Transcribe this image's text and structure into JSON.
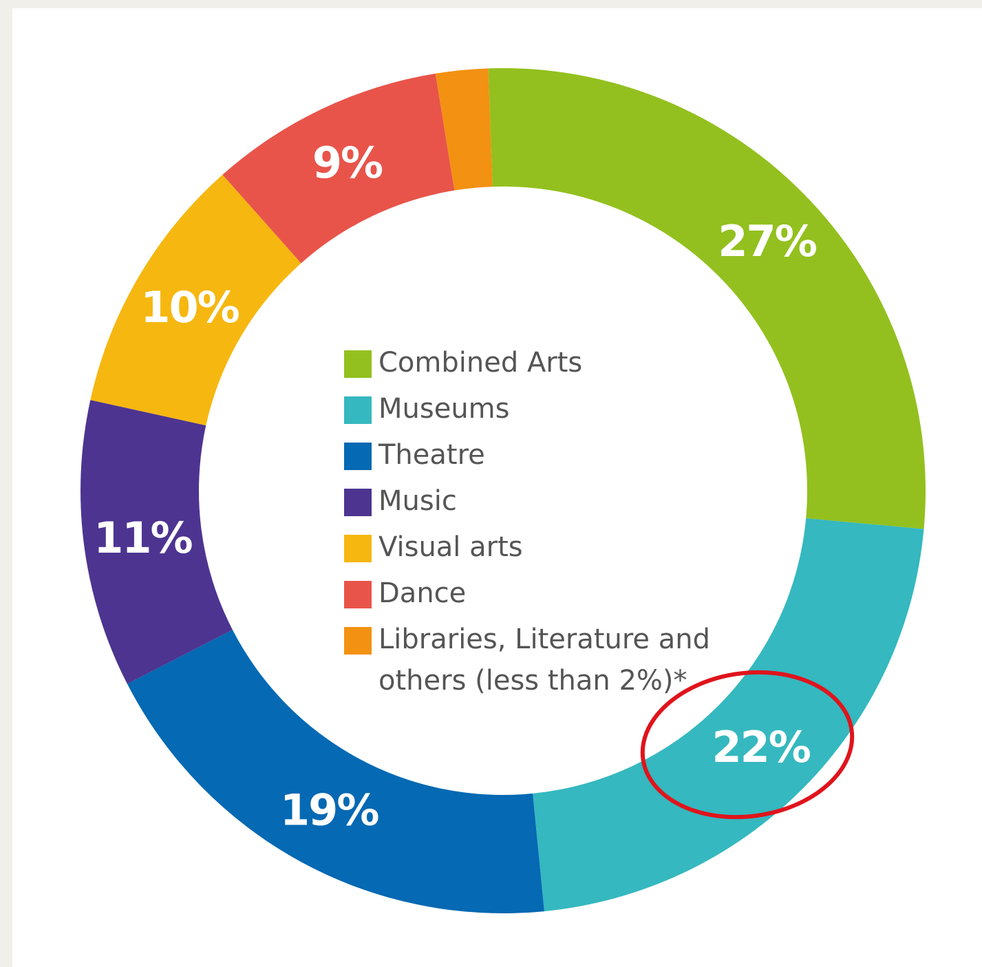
{
  "chart_data": {
    "type": "pie",
    "style": "donut",
    "slices": [
      {
        "label": "Combined Arts",
        "value": 27,
        "display": "27%",
        "color": "#93c01f"
      },
      {
        "label": "Museums",
        "value": 22,
        "display": "22%",
        "color": "#35b8bf"
      },
      {
        "label": "Theatre",
        "value": 19,
        "display": "19%",
        "color": "#0569b3"
      },
      {
        "label": "Music",
        "value": 11,
        "display": "11%",
        "color": "#4d3491"
      },
      {
        "label": "Visual arts",
        "value": 10,
        "display": "10%",
        "color": "#f6b710"
      },
      {
        "label": "Dance",
        "value": 9,
        "display": "9%",
        "color": "#e8544a"
      },
      {
        "label": "Libraries, Literature and others (less than 2%)*",
        "value": 2,
        "display": "",
        "color": "#f39112"
      }
    ],
    "legend": {
      "placement": "center",
      "items": [
        {
          "text": "Combined Arts",
          "color": "#93c01f"
        },
        {
          "text": "Museums",
          "color": "#35b8bf"
        },
        {
          "text": "Theatre",
          "color": "#0569b3"
        },
        {
          "text": "Music",
          "color": "#4d3491"
        },
        {
          "text": "Visual arts",
          "color": "#f6b710"
        },
        {
          "text": "Dance",
          "color": "#e8544a"
        },
        {
          "text": "Libraries, Literature and others (less than 2%)*",
          "color": "#f39112"
        }
      ]
    },
    "annotation": {
      "shape": "ellipse",
      "target": "Museums",
      "color": "#e0141c"
    }
  }
}
